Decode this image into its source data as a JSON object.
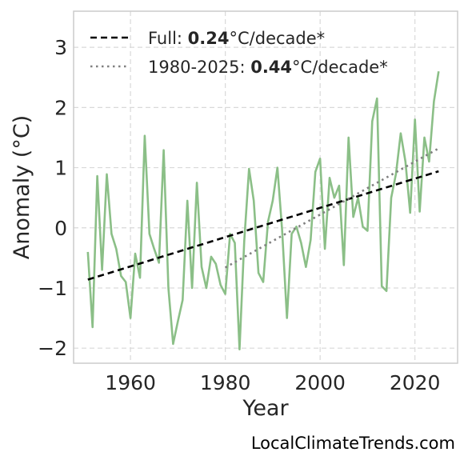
{
  "chart_data": {
    "type": "line",
    "xlabel": "Year",
    "ylabel": "Anomaly (°C)",
    "xlim": [
      1948,
      2029
    ],
    "ylim": [
      -2.25,
      3.6
    ],
    "xticks": [
      1960,
      1980,
      2000,
      2020
    ],
    "yticks": [
      -2,
      -1,
      0,
      1,
      2,
      3
    ],
    "grid": true,
    "legend_position": "top-left",
    "series": [
      {
        "kind": "data",
        "color": "#8bbf87",
        "x": [
          1951,
          1952,
          1953,
          1954,
          1955,
          1956,
          1957,
          1958,
          1959,
          1960,
          1961,
          1962,
          1963,
          1964,
          1965,
          1966,
          1967,
          1968,
          1969,
          1970,
          1971,
          1972,
          1973,
          1974,
          1975,
          1976,
          1977,
          1978,
          1979,
          1980,
          1981,
          1982,
          1983,
          1984,
          1985,
          1986,
          1987,
          1988,
          1989,
          1990,
          1991,
          1992,
          1993,
          1994,
          1995,
          1996,
          1997,
          1998,
          1999,
          2000,
          2001,
          2002,
          2003,
          2004,
          2005,
          2006,
          2007,
          2008,
          2009,
          2010,
          2011,
          2012,
          2013,
          2014,
          2015,
          2016,
          2017,
          2018,
          2019,
          2020,
          2021,
          2022,
          2023,
          2024,
          2025
        ],
        "y": [
          -0.4,
          -1.65,
          0.86,
          -0.7,
          0.89,
          -0.1,
          -0.35,
          -0.8,
          -0.9,
          -1.5,
          -0.43,
          -0.83,
          1.53,
          -0.1,
          -0.35,
          -0.58,
          1.29,
          -1.0,
          -1.93,
          -1.55,
          -1.2,
          0.45,
          -1.0,
          0.75,
          -0.65,
          -1.0,
          -0.48,
          -0.6,
          -0.95,
          -1.1,
          -0.1,
          -0.25,
          -2.02,
          -0.22,
          0.98,
          0.45,
          -0.75,
          -0.9,
          0.1,
          0.45,
          1.0,
          -0.05,
          -1.5,
          -0.1,
          0.02,
          -0.25,
          -0.65,
          -0.2,
          0.93,
          1.15,
          -0.35,
          0.83,
          0.5,
          0.7,
          -0.62,
          1.5,
          0.18,
          0.5,
          0.02,
          -0.05,
          1.77,
          2.15,
          -0.97,
          -1.05,
          0.5,
          0.9,
          1.57,
          1.1,
          0.25,
          1.8,
          0.27,
          1.5,
          1.1,
          2.1,
          2.6
        ]
      },
      {
        "kind": "trend",
        "name_prefix": "Full: ",
        "name_value": "0.24",
        "name_suffix": "°C/decade*",
        "color": "#000000",
        "dash": "dashed",
        "x": [
          1951,
          2025
        ],
        "y": [
          -0.86,
          0.94
        ]
      },
      {
        "kind": "trend",
        "name_prefix": "1980-2025: ",
        "name_value": "0.44",
        "name_suffix": "°C/decade*",
        "color": "#808080",
        "dash": "dotted",
        "x": [
          1980,
          2025
        ],
        "y": [
          -0.66,
          1.32
        ]
      }
    ]
  },
  "watermark": "LocalClimateTrends.com"
}
